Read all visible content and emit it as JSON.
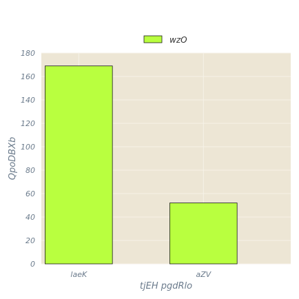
{
  "chart_data": {
    "type": "bar",
    "categories": [
      "laeK",
      "aZV"
    ],
    "series": [
      {
        "name": "wzO",
        "values": [
          169,
          52
        ]
      }
    ],
    "title": "",
    "xlabel": "tjEH pgdRlo",
    "ylabel": "QpoDBXb",
    "ylim": [
      0,
      180
    ],
    "yticks": [
      0,
      20,
      40,
      60,
      80,
      100,
      120,
      140,
      160,
      180
    ],
    "grid": true,
    "legend_position": "top-center",
    "colors": {
      "bar_fill": "#b9ff3f",
      "bar_stroke": "#1a1a1a",
      "plot_background": "#ede6d5",
      "grid": "#f6f2e8",
      "text": "#6b7b8c"
    }
  }
}
